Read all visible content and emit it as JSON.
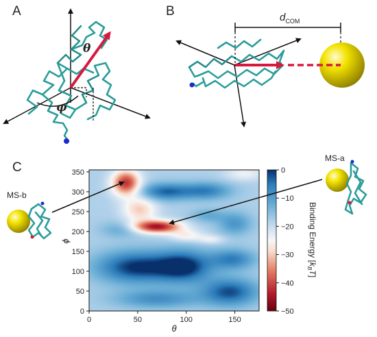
{
  "panels": {
    "a": "A",
    "b": "B",
    "c": "C"
  },
  "panel_a": {
    "theta_label": "θ",
    "phi_label": "φ"
  },
  "panel_b": {
    "dcom_main": "d",
    "dcom_sub": "COM"
  },
  "structures": {
    "left_label": "MS-b",
    "right_label": "MS-a"
  },
  "colors": {
    "protein": "#2a9d99",
    "arrow": "#d6193f",
    "sphere": "#e6d400",
    "cmap_low": "#08306b",
    "cmap_mid": "#f7f7f7",
    "cmap_high": "#67000d"
  },
  "chart_data": {
    "type": "heatmap",
    "xlabel": "θ",
    "ylabel": "ϕ",
    "xlim": [
      0,
      175
    ],
    "ylim": [
      0,
      355
    ],
    "xticks": [
      "0",
      "50",
      "100",
      "150"
    ],
    "yticks": [
      "0",
      "50",
      "100",
      "150",
      "200",
      "250",
      "300",
      "350"
    ],
    "colorbar": {
      "label": "Binding Energy [k_BT]",
      "label_main": "Binding Energy [",
      "label_k": "k",
      "label_sub": "B",
      "label_t": "T",
      "label_end": "]",
      "range": [
        -50,
        0
      ],
      "ticks": [
        "0",
        "−10",
        "−20",
        "−30",
        "−40",
        "−50"
      ]
    },
    "baseline_energy": -18,
    "features": [
      {
        "theta": 38,
        "phi": 322,
        "energy": -42,
        "sigma_theta": 10,
        "sigma_phi": 22
      },
      {
        "theta": 70,
        "phi": 212,
        "energy": -45,
        "sigma_theta": 17,
        "sigma_phi": 11
      },
      {
        "theta": 52,
        "phi": 255,
        "energy": -30,
        "sigma_theta": 12,
        "sigma_phi": 22
      },
      {
        "theta": 100,
        "phi": 190,
        "energy": -26,
        "sigma_theta": 12,
        "sigma_phi": 10
      },
      {
        "theta": 125,
        "phi": 180,
        "energy": -24,
        "sigma_theta": 10,
        "sigma_phi": 8
      },
      {
        "theta": 160,
        "phi": 345,
        "energy": -24,
        "sigma_theta": 14,
        "sigma_phi": 12
      },
      {
        "theta": 78,
        "phi": 300,
        "energy": -4,
        "sigma_theta": 18,
        "sigma_phi": 15
      },
      {
        "theta": 120,
        "phi": 302,
        "energy": -6,
        "sigma_theta": 18,
        "sigma_phi": 15
      },
      {
        "theta": 122,
        "phi": 240,
        "energy": -12,
        "sigma_theta": 12,
        "sigma_phi": 12
      },
      {
        "theta": 32,
        "phi": 205,
        "energy": -12,
        "sigma_theta": 14,
        "sigma_phi": 14
      },
      {
        "theta": 150,
        "phi": 220,
        "energy": -9,
        "sigma_theta": 12,
        "sigma_phi": 20
      },
      {
        "theta": 48,
        "phi": 110,
        "energy": 0,
        "sigma_theta": 28,
        "sigma_phi": 28
      },
      {
        "theta": 98,
        "phi": 112,
        "energy": 0,
        "sigma_theta": 20,
        "sigma_phi": 28
      },
      {
        "theta": 145,
        "phi": 48,
        "energy": -2,
        "sigma_theta": 20,
        "sigma_phi": 24
      },
      {
        "theta": 148,
        "phi": 130,
        "energy": -6,
        "sigma_theta": 16,
        "sigma_phi": 18
      },
      {
        "theta": 70,
        "phi": 30,
        "energy": -8,
        "sigma_theta": 30,
        "sigma_phi": 16
      }
    ]
  }
}
